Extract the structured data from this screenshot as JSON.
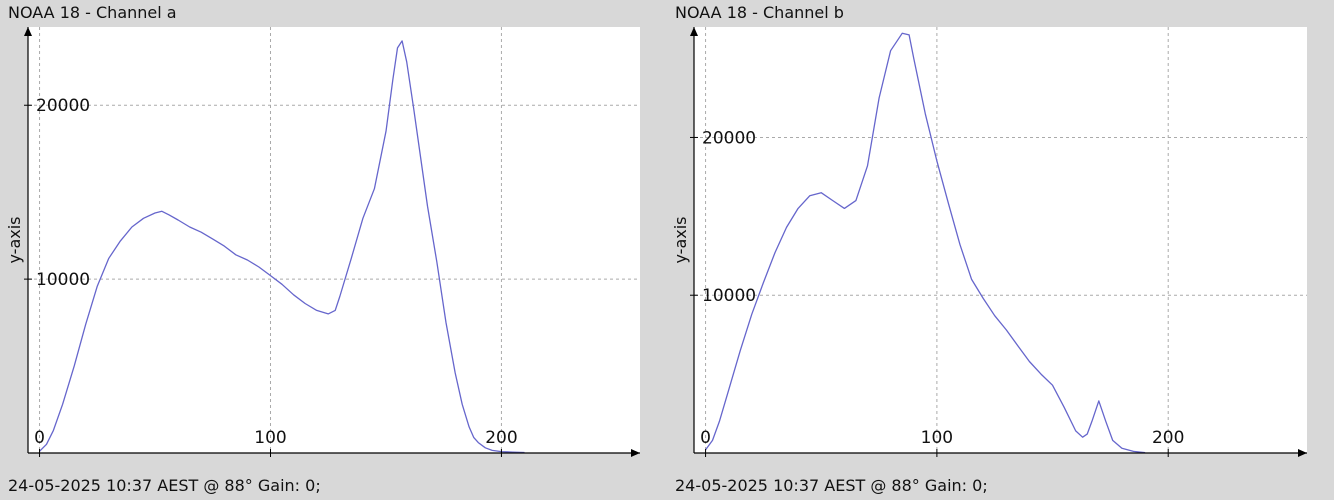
{
  "panels": [
    {
      "title": "NOAA 18 - Channel a",
      "footer": "24-05-2025 10:37 AEST @ 88° Gain: 0;"
    },
    {
      "title": "NOAA 18 - Channel b",
      "footer": "24-05-2025 10:37 AEST @ 88° Gain: 0;"
    }
  ],
  "colors": {
    "background": "#d8d8d8",
    "plot_area": "#ffffff",
    "line": "#6666cc",
    "grid": "#aaaaaa",
    "axis": "#000000"
  },
  "chart_data": [
    {
      "type": "line",
      "title": "NOAA 18 - Channel a",
      "xlabel": "",
      "ylabel": "y-axis",
      "xlim": [
        -5,
        260
      ],
      "ylim": [
        0,
        24500
      ],
      "xticks": [
        0,
        100,
        200
      ],
      "xtick_labels": [
        "0",
        "100",
        "200"
      ],
      "yticks": [
        10000,
        20000
      ],
      "ytick_labels": [
        "10000",
        "20000"
      ],
      "grid": true,
      "series": [
        {
          "x": [
            0,
            3,
            6,
            10,
            15,
            20,
            25,
            30,
            35,
            40,
            45,
            50,
            53,
            56,
            60,
            65,
            70,
            75,
            80,
            85,
            90,
            95,
            100,
            105,
            110,
            115,
            120,
            125,
            128,
            130,
            135,
            140,
            145,
            150,
            153,
            155,
            157,
            159,
            162,
            165,
            168,
            172,
            176,
            180,
            183,
            186,
            188,
            190,
            193,
            196,
            200,
            205,
            210
          ],
          "y": [
            100,
            500,
            1300,
            2800,
            5000,
            7400,
            9600,
            11200,
            12200,
            13000,
            13500,
            13800,
            13900,
            13700,
            13400,
            13000,
            12700,
            12300,
            11900,
            11400,
            11100,
            10700,
            10200,
            9700,
            9100,
            8600,
            8200,
            8000,
            8200,
            9000,
            11200,
            13500,
            15200,
            18500,
            21500,
            23300,
            23700,
            22500,
            19800,
            17000,
            14200,
            11000,
            7500,
            4600,
            2800,
            1500,
            900,
            600,
            300,
            150,
            80,
            50,
            30
          ]
        }
      ]
    },
    {
      "type": "line",
      "title": "NOAA 18 - Channel b",
      "xlabel": "",
      "ylabel": "y-axis",
      "xlim": [
        -5,
        260
      ],
      "ylim": [
        0,
        27000
      ],
      "xticks": [
        0,
        100,
        200
      ],
      "xtick_labels": [
        "0",
        "100",
        "200"
      ],
      "yticks": [
        10000,
        20000
      ],
      "ytick_labels": [
        "10000",
        "20000"
      ],
      "grid": true,
      "series": [
        {
          "x": [
            0,
            3,
            6,
            10,
            15,
            20,
            25,
            30,
            35,
            40,
            45,
            50,
            55,
            60,
            65,
            70,
            75,
            80,
            85,
            88,
            90,
            95,
            100,
            105,
            110,
            115,
            120,
            125,
            130,
            135,
            140,
            145,
            150,
            155,
            160,
            163,
            165,
            167,
            170,
            173,
            176,
            180,
            185,
            190
          ],
          "y": [
            200,
            800,
            2000,
            4000,
            6500,
            8800,
            10800,
            12700,
            14300,
            15500,
            16300,
            16500,
            16000,
            15500,
            16000,
            18200,
            22500,
            25500,
            26600,
            26500,
            25000,
            21500,
            18500,
            15800,
            13200,
            11000,
            9800,
            8700,
            7800,
            6800,
            5800,
            5000,
            4300,
            2900,
            1400,
            1000,
            1200,
            2000,
            3300,
            2000,
            800,
            300,
            100,
            20
          ]
        }
      ]
    }
  ]
}
